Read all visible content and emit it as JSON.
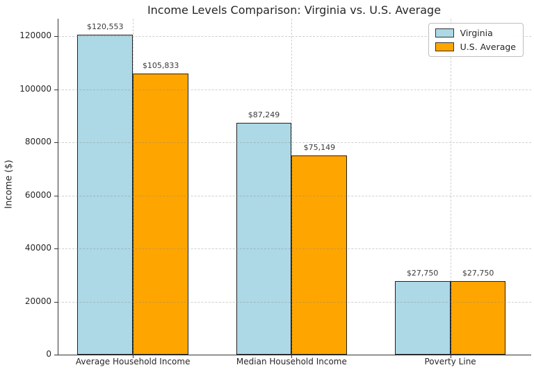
{
  "chart_data": {
    "type": "bar",
    "title": "Income Levels Comparison: Virginia vs. U.S. Average",
    "xlabel": "",
    "ylabel": "Income ($)",
    "categories": [
      "Average Household Income",
      "Median Household Income",
      "Poverty Line"
    ],
    "series": [
      {
        "name": "Virginia",
        "color": "#ADD8E6",
        "values": [
          120553,
          87249,
          27750
        ]
      },
      {
        "name": "U.S. Average",
        "color": "#FFA500",
        "values": [
          105833,
          75149,
          27750
        ]
      }
    ],
    "bar_labels": [
      [
        "$120,553",
        "$87,249",
        "$27,750"
      ],
      [
        "$105,833",
        "$75,149",
        "$27,750"
      ]
    ],
    "yticks": [
      "0",
      "20000",
      "40000",
      "60000",
      "80000",
      "100000",
      "120000"
    ],
    "ytick_values": [
      0,
      20000,
      40000,
      60000,
      80000,
      100000,
      120000
    ],
    "ylim": [
      0,
      126580
    ],
    "bar_width_data": 0.35,
    "xlim": [
      -0.47,
      2.51
    ],
    "grid": "dashed",
    "grid_color": "#c8c8c8",
    "bar_edge_color": "#222222",
    "legend_position": "upper right"
  }
}
